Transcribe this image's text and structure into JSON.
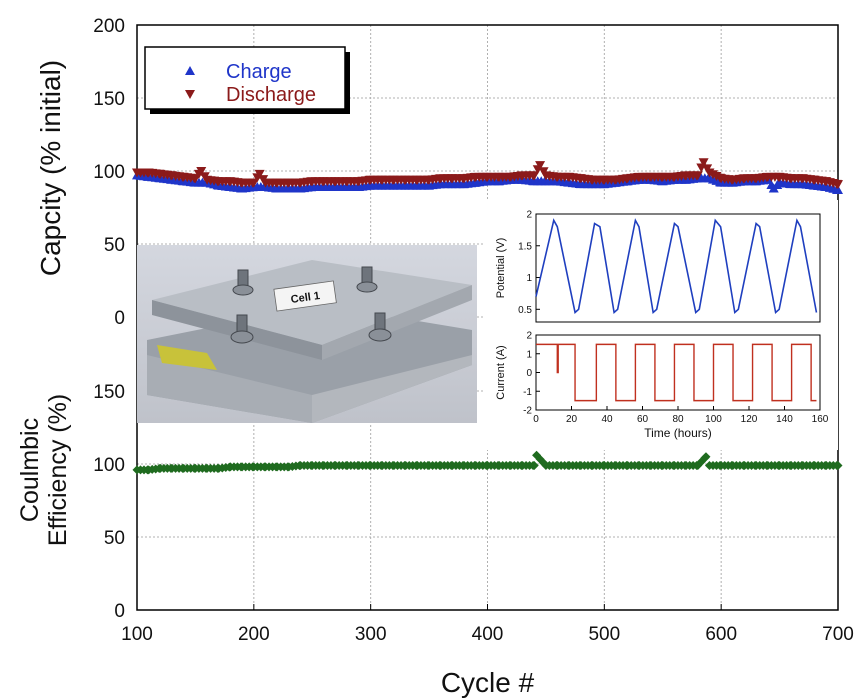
{
  "colors": {
    "charge": "#1f35c9",
    "discharge": "#8b1a1a",
    "efficiency": "#1f6b1f",
    "inset_potential": "#1f3fbf",
    "inset_current": "#c0301f",
    "grid": "#b0b0b0"
  },
  "photo": {
    "label": "Cell 1"
  },
  "chart_data": [
    {
      "type": "scatter",
      "panel": "capacity",
      "ylabel": "Capcity (% initial)",
      "ylim": [
        0,
        200
      ],
      "xlim": [
        100,
        700
      ],
      "yticks": [
        0,
        50,
        100,
        150,
        200
      ],
      "grid": true,
      "legend_position": "top-left",
      "series": [
        {
          "name": "Charge",
          "marker": "triangle-up",
          "x": [
            100,
            110,
            120,
            130,
            140,
            150,
            160,
            170,
            180,
            190,
            200,
            210,
            220,
            230,
            240,
            250,
            260,
            270,
            280,
            290,
            300,
            310,
            320,
            330,
            340,
            350,
            360,
            370,
            380,
            390,
            400,
            410,
            420,
            430,
            440,
            450,
            460,
            470,
            480,
            490,
            500,
            510,
            520,
            530,
            540,
            550,
            560,
            570,
            580,
            590,
            600,
            610,
            620,
            630,
            640,
            645,
            650,
            660,
            670,
            680,
            690,
            700
          ],
          "y": [
            97,
            96,
            95,
            94,
            93,
            92,
            92,
            90,
            89,
            88,
            89,
            89,
            88,
            88,
            88,
            89,
            89,
            89,
            89,
            89,
            90,
            90,
            90,
            90,
            90,
            90,
            91,
            91,
            91,
            92,
            93,
            93,
            94,
            94,
            93,
            93,
            93,
            92,
            91,
            91,
            91,
            92,
            93,
            94,
            94,
            93,
            94,
            94,
            95,
            95,
            92,
            92,
            93,
            93,
            94,
            88,
            92,
            91,
            91,
            90,
            89,
            87
          ]
        },
        {
          "name": "Discharge",
          "marker": "triangle-down",
          "x": [
            100,
            110,
            120,
            130,
            140,
            150,
            155,
            160,
            170,
            180,
            190,
            200,
            205,
            210,
            220,
            230,
            240,
            250,
            260,
            270,
            280,
            290,
            300,
            310,
            320,
            330,
            340,
            350,
            360,
            370,
            380,
            390,
            400,
            410,
            420,
            430,
            440,
            445,
            450,
            460,
            470,
            480,
            490,
            500,
            510,
            520,
            530,
            540,
            550,
            560,
            570,
            580,
            585,
            590,
            600,
            610,
            620,
            630,
            640,
            650,
            660,
            670,
            680,
            690,
            700
          ],
          "y": [
            99,
            99,
            98,
            97,
            96,
            95,
            100,
            94,
            93,
            93,
            92,
            92,
            98,
            92,
            92,
            92,
            92,
            93,
            93,
            93,
            93,
            93,
            94,
            94,
            94,
            94,
            94,
            94,
            95,
            95,
            95,
            96,
            96,
            96,
            96,
            97,
            97,
            104,
            97,
            96,
            96,
            95,
            94,
            94,
            94,
            95,
            96,
            96,
            96,
            96,
            97,
            97,
            106,
            99,
            95,
            94,
            95,
            95,
            96,
            96,
            95,
            95,
            94,
            93,
            91
          ]
        }
      ]
    },
    {
      "type": "scatter",
      "panel": "efficiency",
      "ylabel": "Coulmbic Efficiency (%)",
      "ylim": [
        0,
        200
      ],
      "xlim": [
        100,
        700
      ],
      "xlabel": "Cycle #",
      "xticks": [
        100,
        200,
        300,
        400,
        500,
        600,
        700
      ],
      "yticks": [
        0,
        50,
        100,
        150
      ],
      "grid": true,
      "series": [
        {
          "marker": "diamond",
          "x": [
            100,
            110,
            120,
            130,
            140,
            150,
            160,
            170,
            180,
            190,
            200,
            210,
            220,
            230,
            240,
            250,
            260,
            270,
            280,
            290,
            300,
            310,
            320,
            330,
            340,
            350,
            360,
            370,
            380,
            390,
            400,
            410,
            420,
            430,
            440,
            442,
            450,
            460,
            470,
            480,
            490,
            500,
            510,
            520,
            530,
            540,
            550,
            560,
            570,
            580,
            587,
            590,
            600,
            610,
            620,
            630,
            640,
            650,
            660,
            670,
            680,
            690,
            700
          ],
          "y": [
            96,
            96,
            97,
            97,
            97,
            97,
            97,
            97,
            98,
            98,
            98,
            98,
            98,
            98,
            99,
            99,
            99,
            99,
            99,
            99,
            99,
            99,
            99,
            99,
            99,
            99,
            99,
            99,
            99,
            99,
            99,
            99,
            99,
            99,
            99,
            106,
            99,
            99,
            99,
            99,
            99,
            99,
            99,
            99,
            99,
            99,
            99,
            99,
            99,
            99,
            105,
            99,
            99,
            99,
            99,
            99,
            99,
            99,
            99,
            99,
            99,
            99,
            99
          ]
        }
      ]
    },
    {
      "type": "line",
      "panel": "inset-potential",
      "ylabel": "Potential (V)",
      "ylim": [
        0.3,
        2
      ],
      "yticks": [
        0.5,
        1,
        1.5,
        2
      ],
      "xlim": [
        0,
        160
      ],
      "series": [
        {
          "x": [
            0,
            10,
            12,
            22,
            24,
            33,
            36,
            44,
            46,
            56,
            58,
            66,
            68,
            78,
            80,
            90,
            92,
            101,
            104,
            112,
            114,
            124,
            126,
            135,
            137,
            147,
            149,
            158
          ],
          "y": [
            0.7,
            1.9,
            1.8,
            0.45,
            0.5,
            1.85,
            1.8,
            0.45,
            0.5,
            1.9,
            1.8,
            0.45,
            0.5,
            1.85,
            1.8,
            0.45,
            0.5,
            1.9,
            1.8,
            0.45,
            0.5,
            1.85,
            1.8,
            0.45,
            0.5,
            1.9,
            1.8,
            0.45
          ]
        }
      ]
    },
    {
      "type": "line",
      "panel": "inset-current",
      "ylabel": "Current (A)",
      "xlabel": "Time (hours)",
      "ylim": [
        -2,
        2
      ],
      "yticks": [
        -2,
        -1,
        0,
        1,
        2
      ],
      "xlim": [
        0,
        160
      ],
      "xticks": [
        0,
        20,
        40,
        60,
        80,
        100,
        120,
        140,
        160
      ],
      "series": [
        {
          "x": [
            0,
            12,
            12,
            12.5,
            12.5,
            22,
            22,
            23,
            23,
            34,
            34,
            45,
            45,
            56,
            56,
            67,
            67,
            78,
            78,
            89,
            89,
            100,
            100,
            111,
            111,
            122,
            122,
            133,
            133,
            144,
            144,
            155,
            155,
            158
          ],
          "y": [
            1.5,
            1.5,
            0,
            0,
            1.5,
            1.5,
            -1.5,
            -1.5,
            -1.5,
            -1.5,
            1.5,
            1.5,
            -1.5,
            -1.5,
            1.5,
            1.5,
            -1.5,
            -1.5,
            1.5,
            1.5,
            -1.5,
            -1.5,
            1.5,
            1.5,
            -1.5,
            -1.5,
            1.5,
            1.5,
            -1.5,
            -1.5,
            1.5,
            1.5,
            -1.5,
            -1.5
          ]
        }
      ]
    }
  ]
}
